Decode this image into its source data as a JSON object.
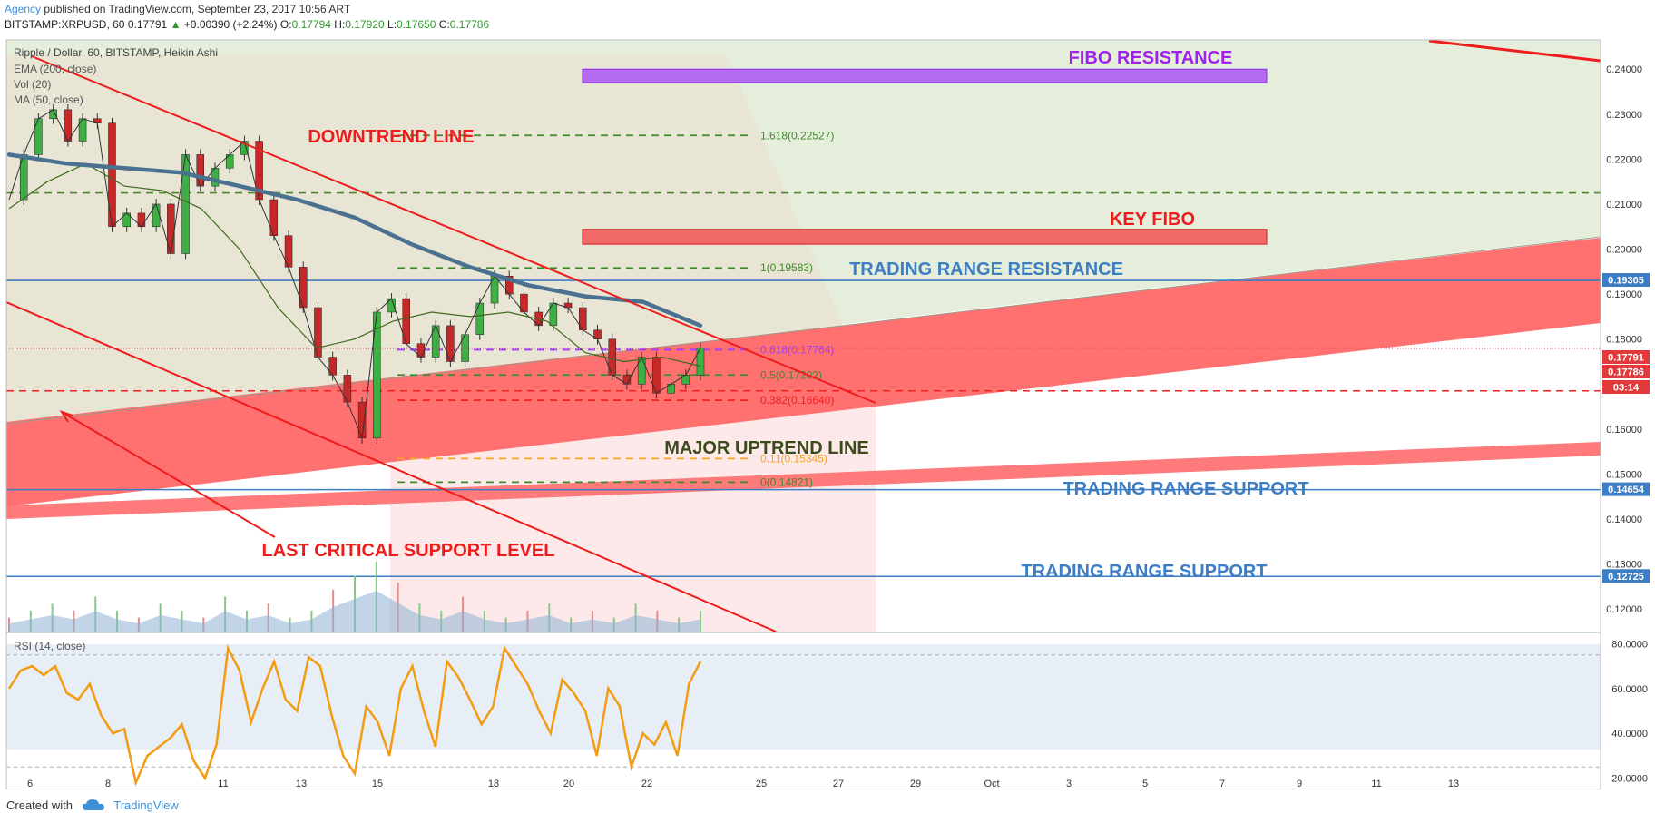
{
  "header": {
    "author": "Agency",
    "published": " published on TradingView.com, September 23, 2017 10:56 ART",
    "symbol": "BITSTAMP:XRPUSD, 60",
    "last": "0.17791",
    "change": "+0.00390 (+2.24%)",
    "o_label": "O:",
    "o": "0.17794",
    "h_label": "H:",
    "h": "0.17920",
    "l_label": "L:",
    "l": "0.17650",
    "c_label": "C:",
    "c": "0.17786"
  },
  "legend": {
    "title": "Ripple / Dollar, 60, BITSTAMP, Heikin Ashi",
    "ema": "EMA (200, close)",
    "vol": "Vol (20)",
    "ma": "MA (50, close)",
    "rsi": "RSI (14, close)"
  },
  "footer": {
    "created": "Created with",
    "brand": "TradingView"
  },
  "colors": {
    "red": "#ff0000",
    "blue": "#3d7dc4",
    "green": "#2e7d32",
    "purple": "#a040ff",
    "orange": "#f39c12",
    "ema": "#4a7190"
  },
  "chart_data": {
    "type": "candlestick",
    "title": "Ripple / Dollar, 60, BITSTAMP, Heikin Ashi",
    "ylim": [
      0.115,
      0.2465
    ],
    "price_ticks": [
      "0.24000",
      "0.23000",
      "0.22000",
      "0.21000",
      "0.20000",
      "0.19000",
      "0.18000",
      "0.17000",
      "0.16000",
      "0.15000",
      "0.14000",
      "0.13000",
      "0.12000"
    ],
    "x_ticks": [
      "6",
      "8",
      "11",
      "13",
      "15",
      "18",
      "20",
      "22",
      "25",
      "27",
      "29",
      "Oct",
      "3",
      "5",
      "7",
      "9",
      "11",
      "13"
    ],
    "rsi_ticks": [
      "80.0000",
      "60.0000",
      "40.0000",
      "20.0000"
    ],
    "rsi_levels": [
      75,
      25
    ],
    "price_path": [
      0.211,
      0.221,
      0.229,
      0.231,
      0.224,
      0.229,
      0.228,
      0.205,
      0.208,
      0.205,
      0.21,
      0.199,
      0.221,
      0.214,
      0.218,
      0.221,
      0.224,
      0.211,
      0.203,
      0.196,
      0.187,
      0.176,
      0.172,
      0.166,
      0.158,
      0.186,
      0.189,
      0.179,
      0.176,
      0.183,
      0.175,
      0.181,
      0.188,
      0.194,
      0.19,
      0.186,
      0.183,
      0.188,
      0.187,
      0.182,
      0.18,
      0.172,
      0.17,
      0.176,
      0.168,
      0.17,
      0.172,
      0.178
    ],
    "ema_path": [
      0.221,
      0.219,
      0.218,
      0.217,
      0.214,
      0.211,
      0.207,
      0.201,
      0.196,
      0.192,
      0.1895,
      0.1883,
      0.183
    ],
    "ma_path": [
      0.209,
      0.215,
      0.219,
      0.214,
      0.213,
      0.209,
      0.2,
      0.187,
      0.178,
      0.18,
      0.184,
      0.186,
      0.185,
      0.186,
      0.184,
      0.177,
      0.175,
      0.176,
      0.174
    ],
    "rsi_path": [
      60,
      68,
      70,
      66,
      70,
      58,
      55,
      62,
      48,
      40,
      42,
      18,
      30,
      34,
      38,
      44,
      28,
      20,
      35,
      78,
      68,
      45,
      60,
      72,
      55,
      50,
      74,
      70,
      48,
      30,
      22,
      52,
      45,
      30,
      60,
      70,
      50,
      34,
      72,
      65,
      55,
      44,
      52,
      78,
      70,
      62,
      50,
      40,
      64,
      58,
      50,
      30,
      60,
      52,
      25,
      40,
      35,
      45,
      30,
      62,
      72
    ],
    "volume_path": [
      0.2,
      0.3,
      0.4,
      0.3,
      0.5,
      0.3,
      0.2,
      0.4,
      0.3,
      0.2,
      0.5,
      0.3,
      0.4,
      0.2,
      0.3,
      0.6,
      0.8,
      1.0,
      0.7,
      0.4,
      0.3,
      0.5,
      0.3,
      0.2,
      0.3,
      0.4,
      0.2,
      0.3,
      0.2,
      0.4,
      0.3,
      0.2,
      0.3
    ],
    "fib_levels": [
      {
        "label": "1.618(0.22527)",
        "value": 0.22527
      },
      {
        "label": "1(0.19583)",
        "value": 0.19583
      },
      {
        "label": "0.618(0.17764)",
        "value": 0.17764
      },
      {
        "label": "0.5(0.17202)",
        "value": 0.17202
      },
      {
        "label": "0.382(0.16640)",
        "value": 0.1664
      },
      {
        "label": "0.11(0.15345)",
        "value": 0.15345
      },
      {
        "label": "0(0.14821)",
        "value": 0.14821
      }
    ],
    "dashed_levels": [
      0.2125,
      0.1685
    ],
    "horizontal_lines": [
      0.19305,
      0.14654,
      0.12725
    ],
    "price_badges": [
      "0.19305",
      "0.17791",
      "0.17786",
      "03:14",
      "0.14654",
      "0.12725"
    ],
    "zones": [
      {
        "label": "FIBO RESISTANCE",
        "from": 0.237,
        "to": 0.24
      },
      {
        "label": "KEY FIBO",
        "from": 0.2011,
        "to": 0.2044
      }
    ],
    "annotations": {
      "fibo_resistance": "FIBO RESISTANCE",
      "key_fibo": "KEY FIBO",
      "downtrend": "DOWNTREND LINE",
      "tr_resistance": "TRADING RANGE RESISTANCE",
      "major_uptrend": "MAJOR UPTREND LINE",
      "tr_support_1": "TRADING RANGE SUPPORT",
      "last_critical": "LAST CRITICAL SUPPORT LEVEL",
      "tr_support_2": "TRADING RANGE SUPPORT"
    }
  }
}
